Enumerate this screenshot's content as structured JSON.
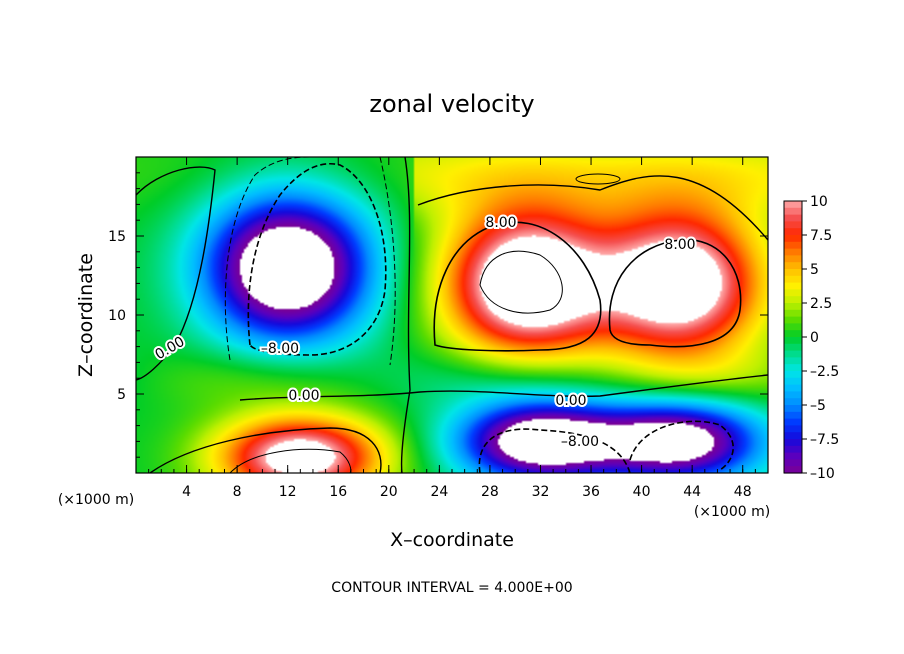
{
  "chart_data": {
    "type": "heatmap",
    "title": "zonal velocity",
    "xlabel": "X–coordinate",
    "ylabel": "Z–coordinate",
    "x_unit": "(×1000 m)",
    "z_unit": "(×1000 m)",
    "xlim": [
      0,
      50
    ],
    "ylim": [
      0,
      20
    ],
    "x_ticks": [
      "4",
      "8",
      "12",
      "16",
      "20",
      "24",
      "28",
      "32",
      "36",
      "40",
      "44",
      "48"
    ],
    "y_ticks": [
      "5",
      "10",
      "15"
    ],
    "colorbar": {
      "min": -10,
      "max": 10,
      "tick_labels": [
        "10",
        "7.5",
        "5",
        "2.5",
        "0",
        "–2.5",
        "–5",
        "–7.5",
        "–10"
      ]
    },
    "contour_labels": [
      "8.00",
      "8.00",
      "0.00",
      "–8.00",
      "0.00",
      "0.00",
      "–8.00"
    ],
    "contour_interval_text": "CONTOUR INTERVAL = 4.000E+00",
    "features": [
      {
        "sign": "negative",
        "x": 12,
        "z": 13,
        "peak": -14
      },
      {
        "sign": "positive",
        "x": 31,
        "z": 12,
        "peak": 14
      },
      {
        "sign": "positive",
        "x": 43,
        "z": 12,
        "peak": 13
      },
      {
        "sign": "positive",
        "x": 13,
        "z": 1,
        "peak": 12
      },
      {
        "sign": "negative",
        "x": 32,
        "z": 2,
        "peak": -13
      },
      {
        "sign": "negative",
        "x": 43,
        "z": 2,
        "peak": -12
      }
    ]
  }
}
